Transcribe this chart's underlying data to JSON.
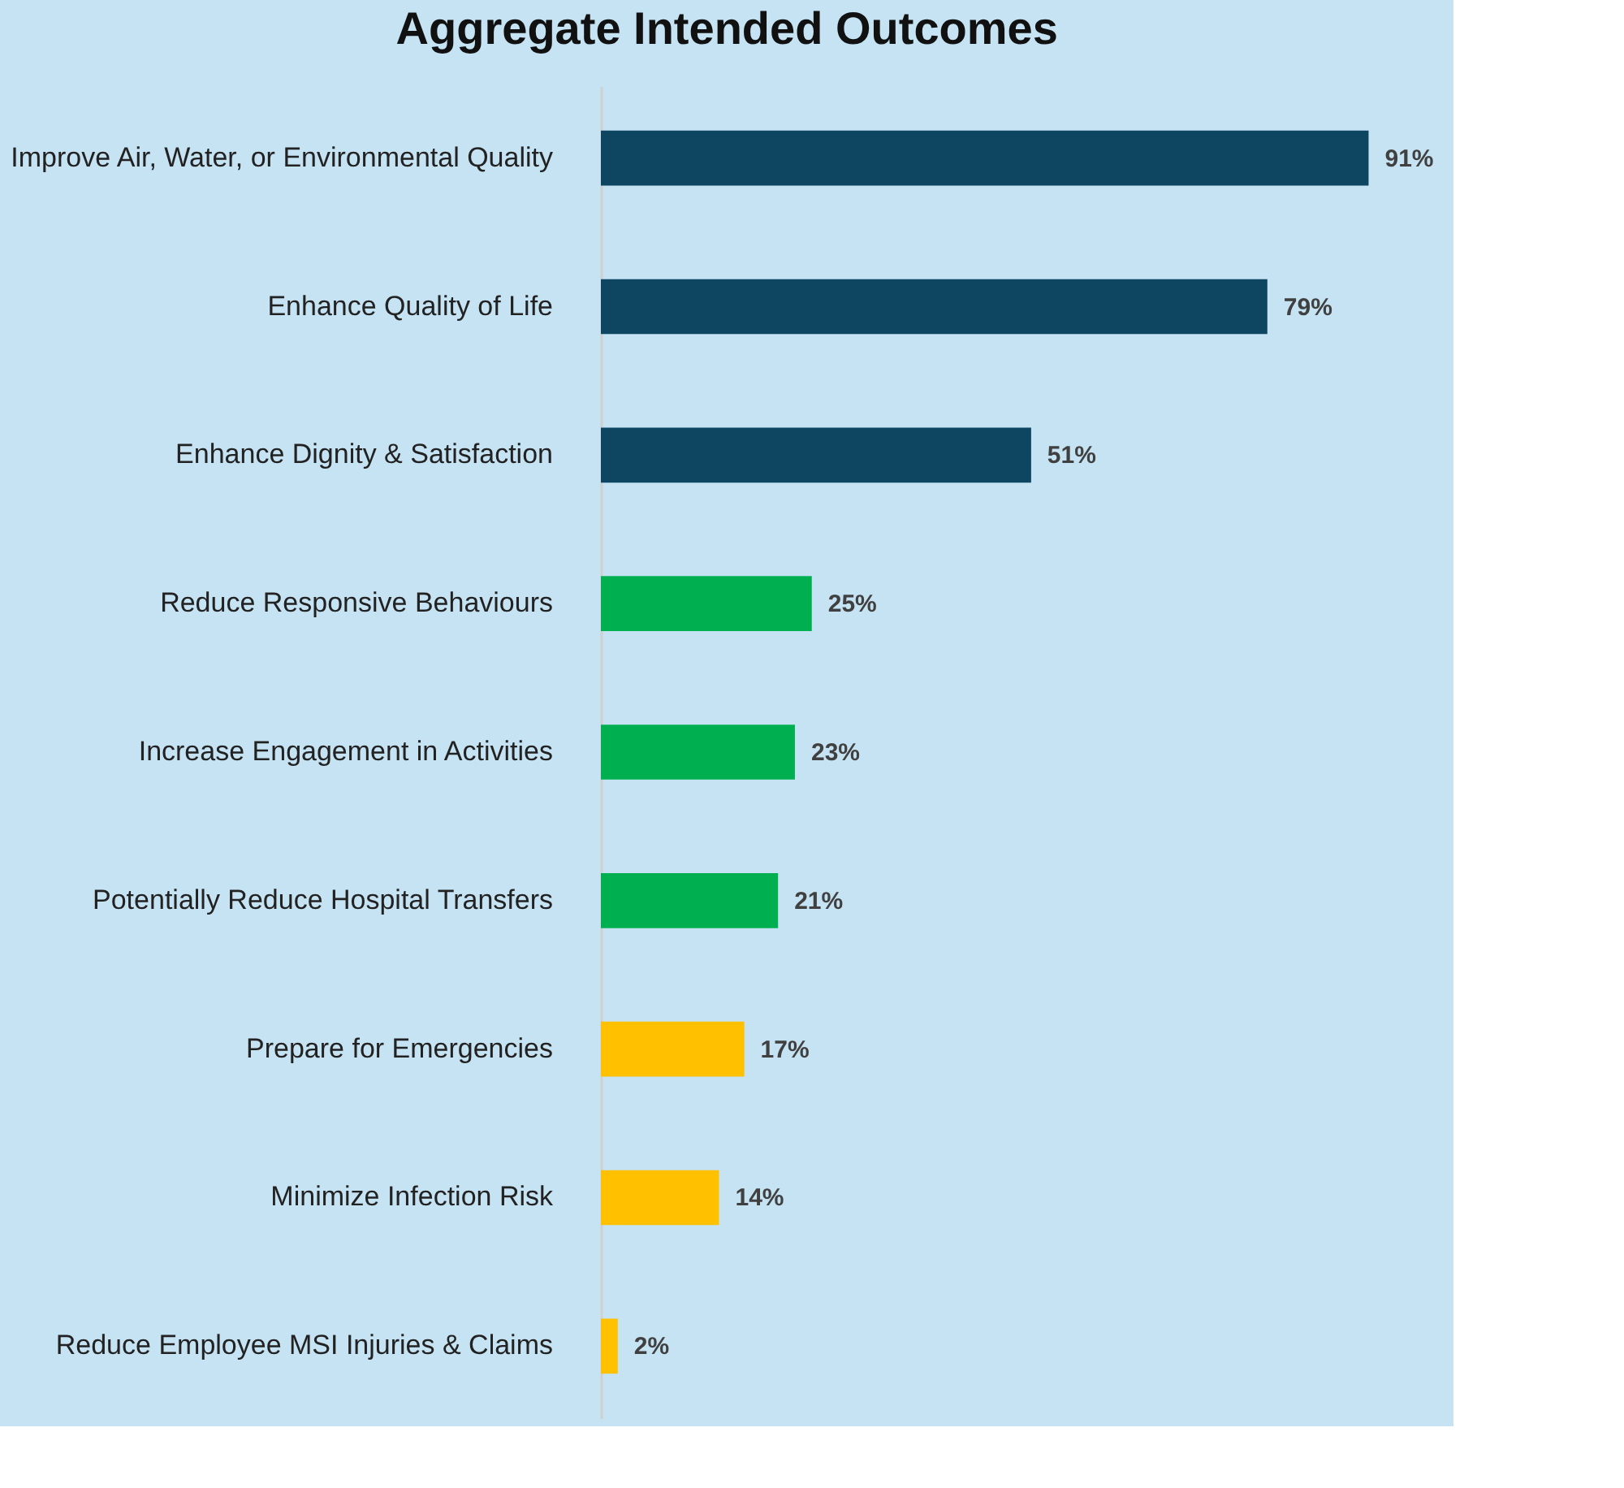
{
  "chart_data": {
    "type": "bar",
    "orientation": "horizontal",
    "title": "Aggregate Intended Outcomes",
    "categories": [
      "Improve Air, Water, or Environmental Quality",
      "Enhance Quality of Life",
      "Enhance Dignity & Satisfaction",
      "Reduce Responsive Behaviours",
      "Increase Engagement in Activities",
      "Potentially Reduce Hospital Transfers",
      "Prepare for Emergencies",
      "Minimize Infection Risk",
      "Reduce Employee MSI Injuries & Claims"
    ],
    "values": [
      91,
      79,
      51,
      25,
      23,
      21,
      17,
      14,
      2
    ],
    "value_labels": [
      "91%",
      "79%",
      "51%",
      "25%",
      "23%",
      "21%",
      "17%",
      "14%",
      "2%"
    ],
    "colors": [
      "#0e4560",
      "#0e4560",
      "#0e4560",
      "#00b050",
      "#00b050",
      "#00b050",
      "#ffc000",
      "#ffc000",
      "#ffc000"
    ]
  }
}
